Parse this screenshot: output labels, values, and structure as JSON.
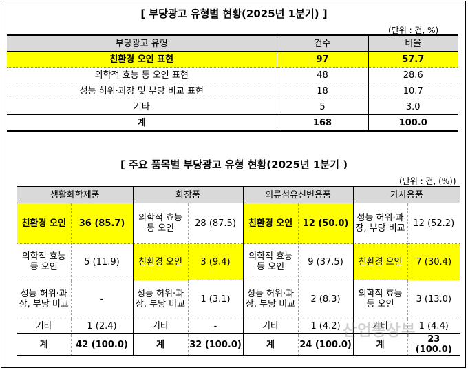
{
  "table1": {
    "title": "[ 부당광고 유형별 현황(2025년 1분기) ]",
    "unit": "(단위 : 건, %)",
    "headers": [
      "부당광고 유형",
      "건수",
      "비율"
    ],
    "rows": [
      {
        "type": "친환경 오인 표현",
        "count": "97",
        "ratio": "57.7"
      },
      {
        "type": "의학적 효능 등 오인 표현",
        "count": "48",
        "ratio": "28.6"
      },
      {
        "type": "성능 허위·과장 및 부당 비교 표현",
        "count": "18",
        "ratio": "10.7"
      },
      {
        "type": "기타",
        "count": "5",
        "ratio": "3.0"
      }
    ],
    "total": {
      "label": "계",
      "count": "168",
      "ratio": "100.0"
    }
  },
  "table2": {
    "title": "[ 주요 품목별 부당광고 유형 현황(2025년 1분기 )",
    "unit": "(단위 : 건, (%))",
    "groups": [
      "생활화학제품",
      "화장품",
      "의류섬유신변용품",
      "가사용품"
    ],
    "rows": [
      [
        {
          "cat": "친환경 오인",
          "val": "36 (85.7)"
        },
        {
          "cat": "의학적 효능 등 오인",
          "val": "28 (87.5)"
        },
        {
          "cat": "친환경 오인",
          "val": "12 (50.0)"
        },
        {
          "cat": "성능 허위·과장, 부당 비교",
          "val": "12 (52.2)"
        }
      ],
      [
        {
          "cat": "의학적 효능 등 오인",
          "val": "5 (11.9)"
        },
        {
          "cat": "친환경 오인",
          "val": "3 (9.4)"
        },
        {
          "cat": "의학적 효능 등 오인",
          "val": "9 (37.5)"
        },
        {
          "cat": "친환경 오인",
          "val": "7 (30.4)"
        }
      ],
      [
        {
          "cat": "성능 허위·과장, 부당 비교",
          "val": "-"
        },
        {
          "cat": "성능 허위·과장, 부당 비교",
          "val": "1 (3.1)"
        },
        {
          "cat": "성능 허위·과장, 부당 비교",
          "val": "2 (8.3)"
        },
        {
          "cat": "의학적 효능 등 오인",
          "val": "3 (13.0)"
        }
      ],
      [
        {
          "cat": "기타",
          "val": "1 (2.4)"
        },
        {
          "cat": "기타",
          "val": "-"
        },
        {
          "cat": "기타",
          "val": "1 (4.2)"
        },
        {
          "cat": "기타",
          "val": "1 (4.4)"
        }
      ],
      [
        {
          "cat": "계",
          "val": "42 (100.0)"
        },
        {
          "cat": "계",
          "val": "32 (100.0)"
        },
        {
          "cat": "계",
          "val": "24 (100.0)"
        },
        {
          "cat": "계",
          "val": "23 (100.0)"
        }
      ]
    ]
  },
  "watermark": "산업통상부",
  "colors": {
    "highlight": "#ffff00",
    "header": "#d9d9d9"
  }
}
